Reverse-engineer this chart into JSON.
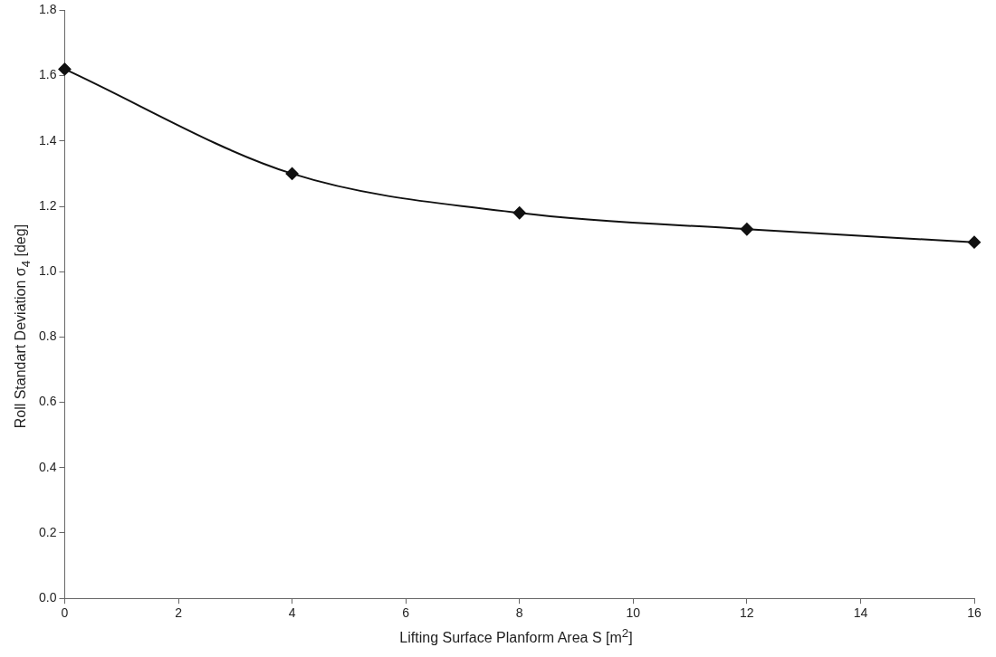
{
  "chart_data": {
    "type": "line",
    "xlabel": "Lifting Surface Planform Area S [m$^{2}$]",
    "ylabel": "Roll Standart Deviation σ$_{4}$ [deg]",
    "x": [
      0,
      4,
      8,
      12,
      16
    ],
    "series": [
      {
        "color": "#111111",
        "values": [
          1.62,
          1.3,
          1.18,
          1.13,
          1.09
        ]
      }
    ],
    "xlim": [
      0,
      16
    ],
    "xticks": [
      0,
      2,
      4,
      6,
      8,
      10,
      12,
      14,
      16
    ],
    "ylim": [
      0,
      1.8
    ],
    "yticks": [
      {
        "value": 0,
        "label": "0.0"
      },
      {
        "value": 0.2,
        "label": "0.2"
      },
      {
        "value": 0.4,
        "label": "0.4"
      },
      {
        "value": 0.6,
        "label": "0.6"
      },
      {
        "value": 0.8,
        "label": "0.8"
      },
      {
        "value": 1,
        "label": "1.0"
      },
      {
        "value": 1.2,
        "label": "1.2"
      },
      {
        "value": 1.4,
        "label": "1.4"
      },
      {
        "value": 1.6,
        "label": "1.6"
      },
      {
        "value": 1.8,
        "label": "1.8"
      }
    ],
    "grid": false,
    "legend": false,
    "marker": "diamond",
    "line_style": "solid"
  }
}
